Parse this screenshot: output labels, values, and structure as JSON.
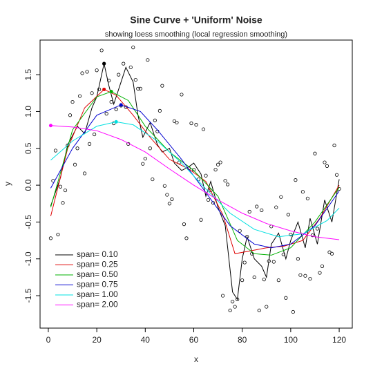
{
  "chart_data": {
    "type": "scatter",
    "title": "Sine Curve + 'Uniform' Noise",
    "subtitle": "showing loess smoothing (local regression smoothing)",
    "x_label": "x",
    "y_label": "y",
    "xlim": [
      -3.4,
      125.4
    ],
    "ylim": [
      -1.94,
      1.97
    ],
    "xticks": [
      0,
      20,
      40,
      60,
      80,
      100,
      120
    ],
    "yticks": [
      -1.5,
      {
        "value": -1.0,
        "label": "-1.0"
      },
      -0.5,
      {
        "value": 0,
        "label": "0.0"
      },
      0.5,
      {
        "value": 1.0,
        "label": "1.0"
      },
      1.5
    ],
    "legend": "bottom-left",
    "x": [
      1,
      2,
      3,
      4,
      5,
      6,
      7,
      8,
      9,
      10,
      11,
      12,
      13,
      14,
      15,
      16,
      17,
      18,
      19,
      20,
      21,
      22,
      23,
      24,
      25,
      26,
      27,
      28,
      29,
      30,
      31,
      32,
      33,
      34,
      35,
      36,
      37,
      38,
      39,
      40,
      41,
      42,
      43,
      44,
      45,
      46,
      47,
      48,
      49,
      50,
      51,
      52,
      53,
      54,
      55,
      56,
      57,
      58,
      59,
      60,
      61,
      62,
      63,
      64,
      65,
      66,
      67,
      68,
      69,
      70,
      71,
      72,
      73,
      74,
      75,
      76,
      77,
      78,
      79,
      80,
      81,
      82,
      83,
      84,
      85,
      86,
      87,
      88,
      89,
      90,
      91,
      92,
      93,
      94,
      95,
      96,
      97,
      98,
      99,
      100,
      101,
      102,
      103,
      104,
      105,
      106,
      107,
      108,
      109,
      110,
      111,
      112,
      113,
      114,
      115,
      116,
      117,
      118,
      119,
      120
    ],
    "values": [
      -0.72,
      0.06,
      0.47,
      -0.67,
      -0.02,
      -0.24,
      -0.07,
      0.54,
      0.95,
      1.13,
      0.28,
      0.5,
      1.21,
      1.52,
      0.16,
      1.54,
      0.56,
      1.25,
      0.69,
      1.56,
      1.3,
      1.83,
      1.65,
      0.97,
      1.42,
      1.13,
      0.84,
      1.03,
      1.5,
      1.08,
      1.65,
      1.06,
      0.56,
      1.6,
      1.87,
      1.43,
      1.31,
      1.31,
      0.29,
      0.36,
      1.7,
      0.5,
      0.08,
      0.88,
      0.73,
      1.01,
      1.35,
      -0.01,
      -0.13,
      -0.25,
      -0.19,
      0.87,
      0.85,
      0.31,
      1.23,
      -0.53,
      -0.72,
      0.23,
      0.84,
      0.21,
      0.82,
      0.08,
      -0.47,
      0.76,
      0.13,
      -0.2,
      -0.07,
      -0.24,
      0.21,
      0.28,
      0.31,
      -1.5,
      0.06,
      0.01,
      -1.7,
      -1.58,
      -1.65,
      -1.55,
      -0.62,
      -1.29,
      -1.05,
      -0.7,
      -0.36,
      -0.93,
      -1.25,
      -0.29,
      -1.7,
      -0.34,
      -1.28,
      -1.65,
      -1.03,
      -0.56,
      -1.04,
      -0.3,
      -1.29,
      -0.16,
      -0.94,
      -1.53,
      -0.4,
      -0.67,
      -1.72,
      0.07,
      -1.0,
      -1.22,
      -0.09,
      -1.23,
      -0.18,
      -1.27,
      -0.68,
      0.43,
      -0.59,
      -1.19,
      -1.1,
      0.31,
      0.26,
      -0.91,
      -0.93,
      0.54,
      0.14,
      -0.05
    ],
    "series": [
      {
        "name": "span= 0.10",
        "color": "#000000",
        "peak": [
          23,
          1.65
        ],
        "x": [
          1,
          5,
          8,
          12,
          15,
          18,
          20,
          23,
          25,
          27,
          30,
          32,
          35,
          37,
          39,
          42,
          45,
          47,
          50,
          52,
          55,
          58,
          60,
          63,
          65,
          67,
          70,
          73,
          76,
          78,
          80,
          82,
          85,
          88,
          90,
          92,
          95,
          98,
          100,
          103,
          106,
          108,
          111,
          114,
          117,
          120
        ],
        "values": [
          -0.28,
          0.1,
          0.55,
          0.8,
          0.7,
          1.05,
          1.2,
          1.65,
          1.35,
          1.1,
          1.4,
          1.6,
          1.4,
          0.95,
          0.65,
          0.85,
          0.55,
          0.45,
          0.5,
          0.3,
          0.2,
          0.25,
          0.3,
          0.15,
          -0.15,
          0.05,
          -0.3,
          -0.55,
          -1.45,
          -1.55,
          -1.0,
          -0.7,
          -1.0,
          -1.1,
          -1.25,
          -0.8,
          -0.65,
          -1.0,
          -0.75,
          -0.5,
          -0.85,
          -0.45,
          -0.8,
          -0.2,
          -0.5,
          0.08
        ]
      },
      {
        "name": "span= 0.25",
        "color": "#df0000",
        "peak": [
          23,
          1.3
        ],
        "x": [
          1,
          8,
          15,
          23,
          28,
          35,
          42,
          50,
          58,
          65,
          72,
          77,
          82,
          90,
          97,
          105,
          112,
          120
        ],
        "values": [
          -0.42,
          0.5,
          1.05,
          1.3,
          1.22,
          0.95,
          0.65,
          0.35,
          0.22,
          0.05,
          -0.4,
          -0.93,
          -0.9,
          -0.85,
          -0.83,
          -0.75,
          -0.45,
          0.0
        ]
      },
      {
        "name": "span= 0.50",
        "color": "#00b000",
        "peak": [
          26,
          1.27
        ],
        "x": [
          1,
          10,
          20,
          26,
          33,
          40,
          50,
          60,
          70,
          78,
          85,
          92,
          100,
          110,
          120
        ],
        "values": [
          -0.3,
          0.75,
          1.2,
          1.27,
          1.15,
          0.8,
          0.45,
          0.2,
          -0.15,
          -0.75,
          -0.93,
          -0.95,
          -0.85,
          -0.5,
          -0.03
        ]
      },
      {
        "name": "span= 0.75",
        "color": "#0000d0",
        "peak": [
          30,
          1.09
        ],
        "x": [
          1,
          10,
          20,
          30,
          38,
          45,
          55,
          65,
          75,
          85,
          92,
          100,
          110,
          120
        ],
        "values": [
          -0.04,
          0.5,
          0.95,
          1.09,
          1.0,
          0.75,
          0.35,
          -0.1,
          -0.55,
          -0.8,
          -0.85,
          -0.8,
          -0.55,
          -0.08
        ]
      },
      {
        "name": "span= 1.00",
        "color": "#00e0e0",
        "peak": [
          28,
          0.86
        ],
        "x": [
          1,
          10,
          20,
          28,
          35,
          45,
          55,
          65,
          75,
          85,
          95,
          105,
          115,
          120
        ],
        "values": [
          0.34,
          0.6,
          0.8,
          0.86,
          0.82,
          0.6,
          0.3,
          -0.05,
          -0.38,
          -0.6,
          -0.7,
          -0.66,
          -0.48,
          -0.31
        ]
      },
      {
        "name": "span= 2.00",
        "color": "#ff00ff",
        "peak": [
          1,
          0.81
        ],
        "x": [
          1,
          10,
          20,
          30,
          40,
          50,
          60,
          70,
          80,
          90,
          100,
          110,
          120
        ],
        "values": [
          0.81,
          0.79,
          0.74,
          0.62,
          0.45,
          0.22,
          0.0,
          -0.2,
          -0.38,
          -0.52,
          -0.62,
          -0.7,
          -0.74
        ]
      }
    ]
  }
}
